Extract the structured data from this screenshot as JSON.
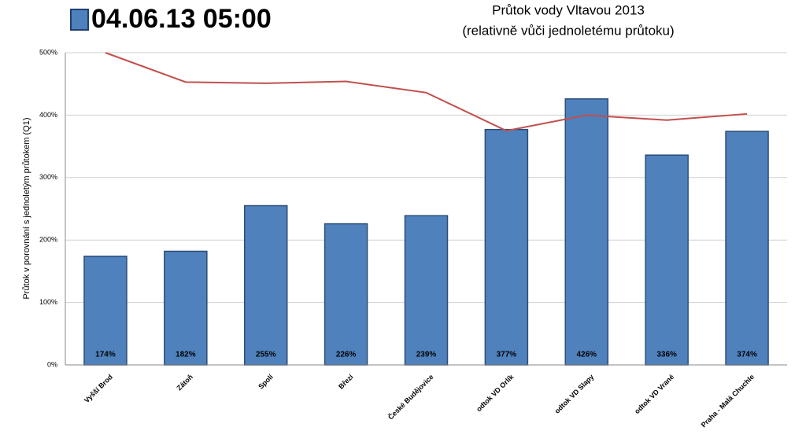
{
  "chart_data": {
    "type": "bar",
    "title": "Průtok vody Vltavou 2013",
    "subtitle": "(relativně vůči jednoletému průtoku)",
    "y_label": "Průtok v porovnání s jednoletým průtokem (Q1)",
    "categories": [
      "Vyšší Brod",
      "Zátoň",
      "Spolí",
      "Březí",
      "České Budějovice",
      "odtok VD Orlík",
      "odtok VD Slapy",
      "odtok VD Vrané",
      "Praha - Malá Chuchle"
    ],
    "series": [
      {
        "name": "04.06.13 05:00",
        "type": "bar",
        "color": "#4f81bd",
        "values": [
          174,
          182,
          255,
          226,
          239,
          377,
          426,
          336,
          374
        ],
        "value_labels": [
          "174%",
          "182%",
          "255%",
          "226%",
          "239%",
          "377%",
          "426%",
          "336%",
          "374%"
        ]
      },
      {
        "type": "line",
        "color": "#c0504d",
        "values": [
          500,
          453,
          451,
          454,
          436,
          375,
          400,
          392,
          402
        ]
      }
    ],
    "ylim": [
      0,
      500
    ],
    "yticks": [
      {
        "value": 0,
        "label": "0%"
      },
      {
        "value": 100,
        "label": "100%"
      },
      {
        "value": 200,
        "label": "200%"
      },
      {
        "value": 300,
        "label": "300%"
      },
      {
        "value": 400,
        "label": "400%"
      },
      {
        "value": 500,
        "label": "500%"
      }
    ],
    "grid": true
  }
}
